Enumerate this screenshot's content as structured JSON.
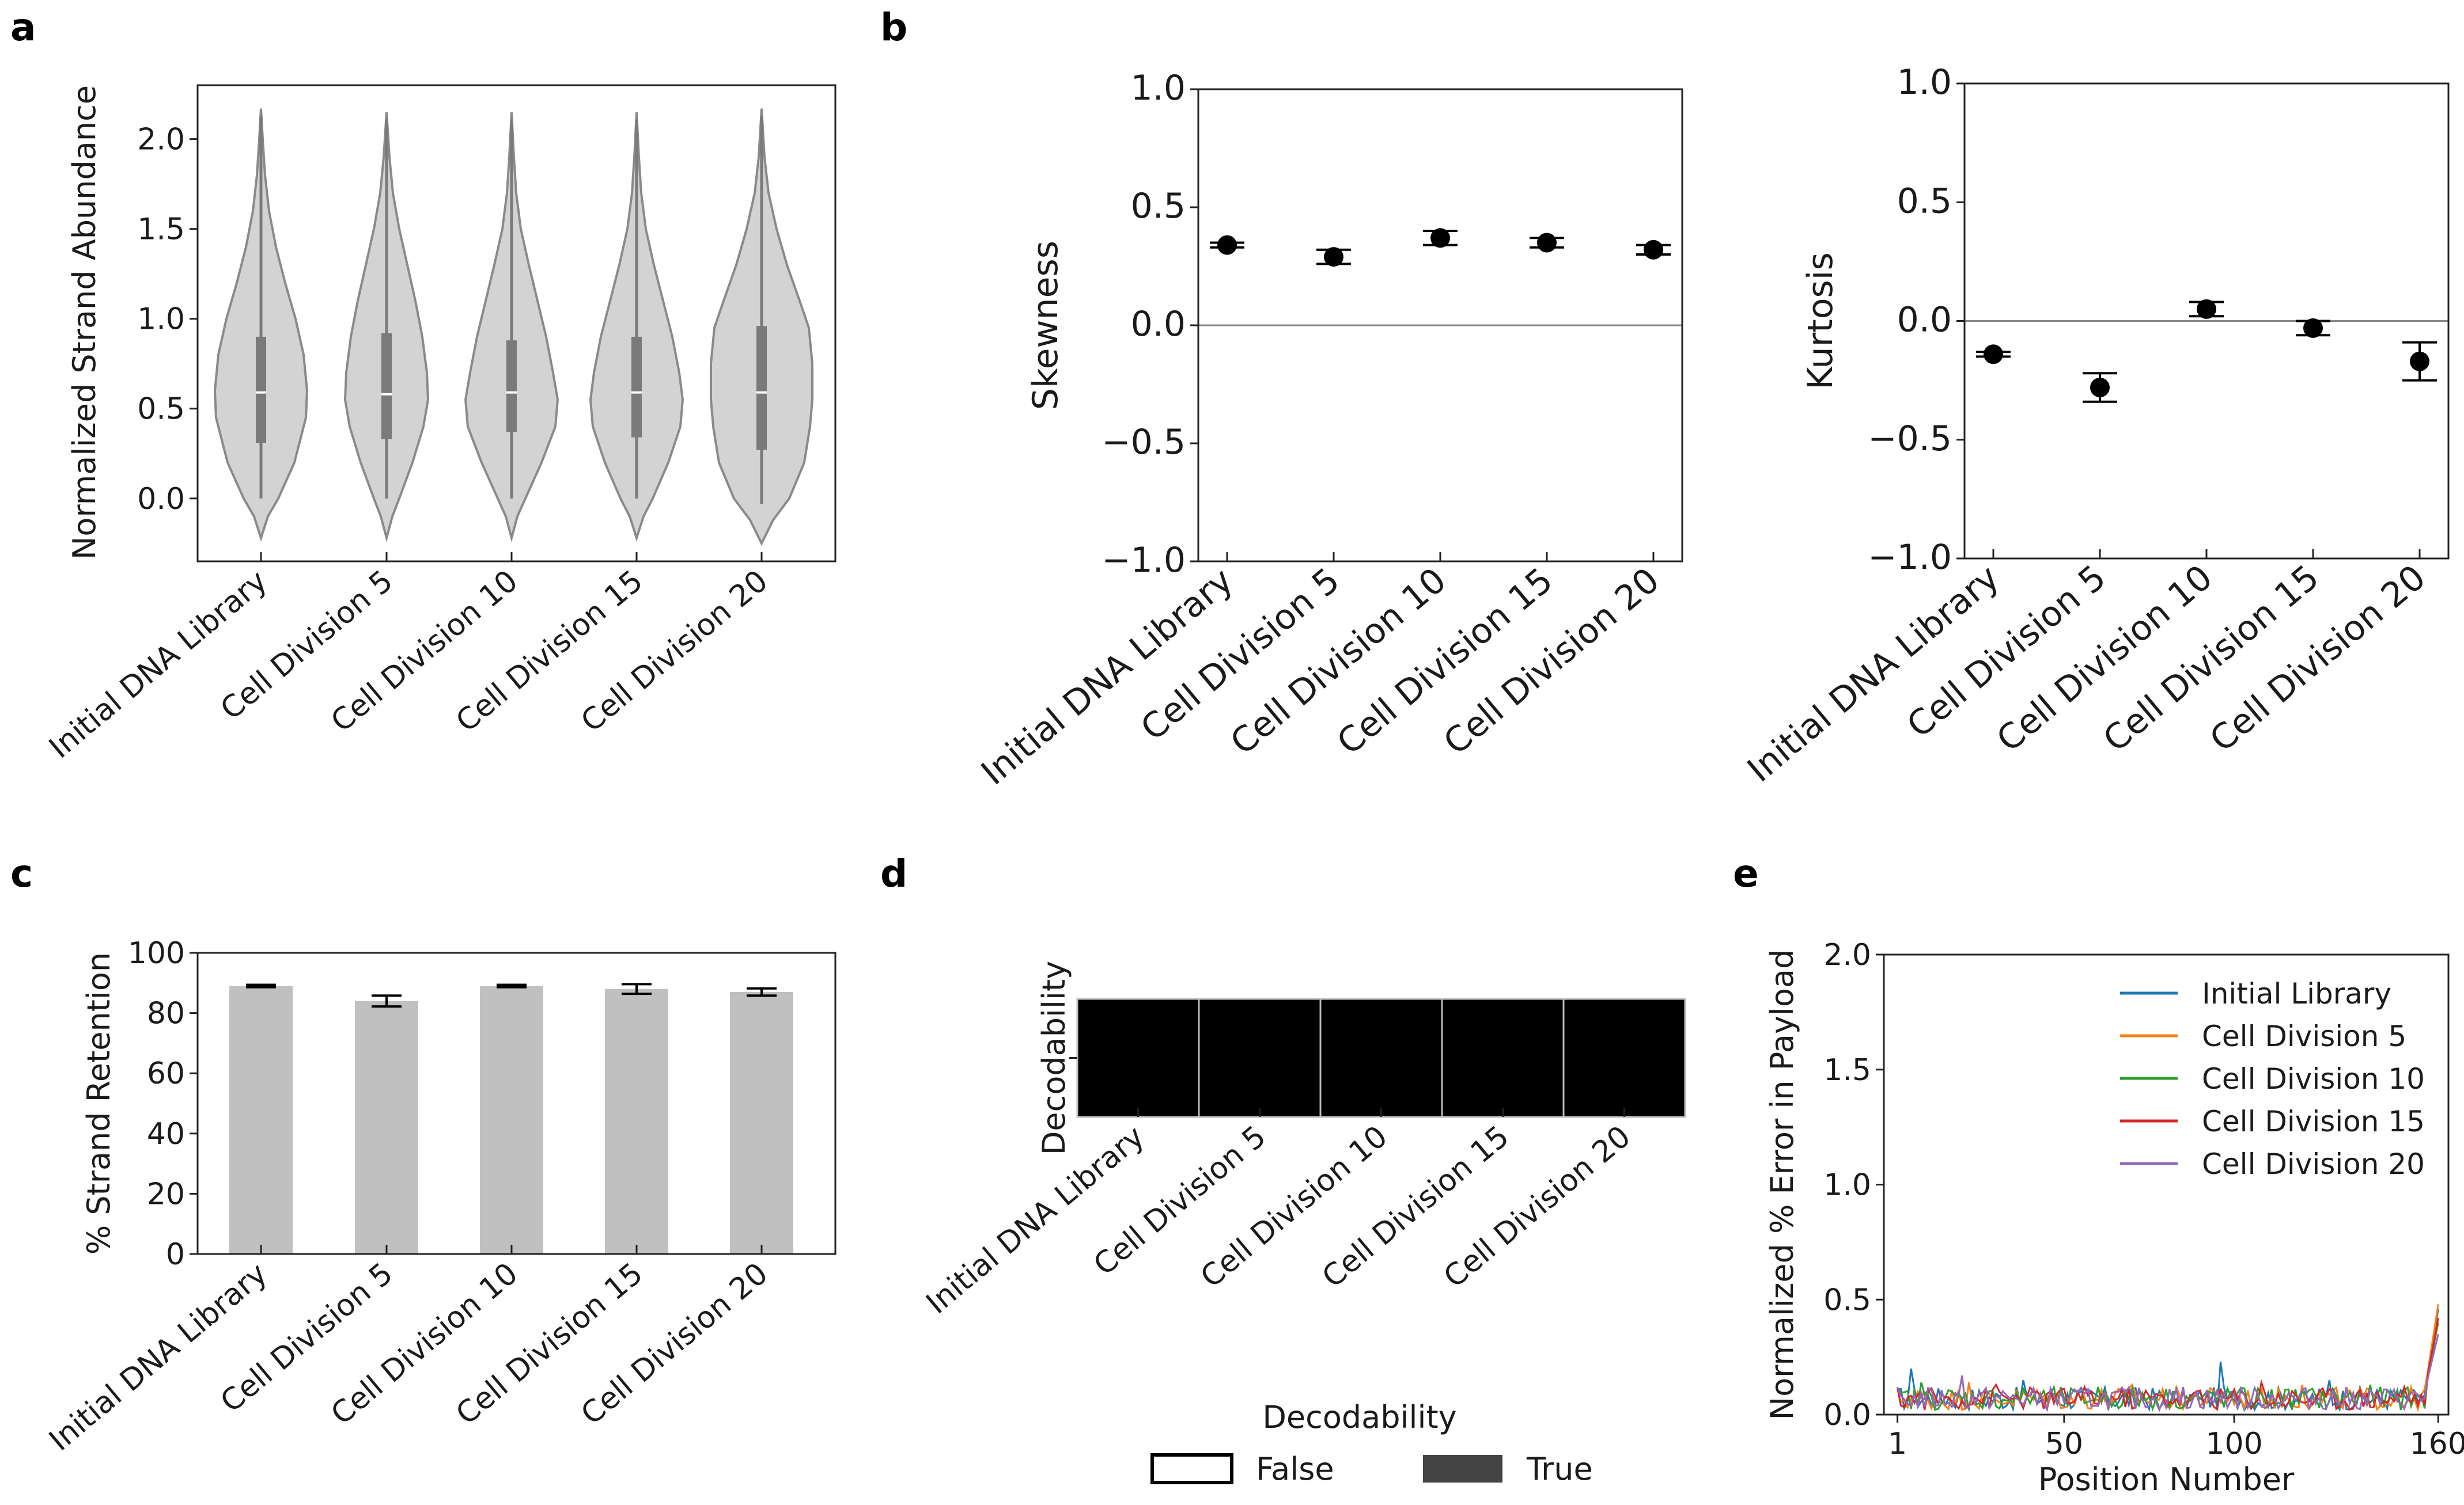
{
  "panels": {
    "a": "a",
    "b": "b",
    "c": "c",
    "d": "d",
    "e": "e"
  },
  "colors": {
    "violin_fill": "#d3d3d3",
    "violin_edge": "#8a8a8a",
    "box": "#7a7a7a",
    "bar": "#c0c0c0",
    "heat_true": "#000000",
    "legend_true": "#444444",
    "series": [
      "#1f77b4",
      "#ff7f0e",
      "#2ca02c",
      "#d62728",
      "#9467bd"
    ]
  },
  "chart_data": [
    {
      "id": "a",
      "type": "violin",
      "categories": [
        "Initial DNA Library",
        "Cell Division 5",
        "Cell Division 10",
        "Cell Division 15",
        "Cell Division 20"
      ],
      "ylabel": "Normalized Strand Abundance",
      "ylim": [
        -0.35,
        2.3
      ],
      "yticks": [
        0.0,
        0.5,
        1.0,
        1.5,
        2.0
      ],
      "ytick_labels": [
        "0.0",
        "0.5",
        "1.0",
        "1.5",
        "2.0"
      ],
      "series": [
        {
          "name": "Initial DNA Library",
          "min": -0.22,
          "max": 2.17,
          "q1": 0.31,
          "median": 0.59,
          "q3": 0.9,
          "profile": [
            [
              -0.22,
              0.0
            ],
            [
              -0.1,
              0.12
            ],
            [
              0.0,
              0.3
            ],
            [
              0.2,
              0.58
            ],
            [
              0.45,
              0.78
            ],
            [
              0.6,
              0.8
            ],
            [
              0.8,
              0.74
            ],
            [
              1.0,
              0.6
            ],
            [
              1.2,
              0.42
            ],
            [
              1.4,
              0.26
            ],
            [
              1.6,
              0.14
            ],
            [
              1.8,
              0.07
            ],
            [
              2.0,
              0.03
            ],
            [
              2.17,
              0.0
            ]
          ]
        },
        {
          "name": "Cell Division 5",
          "min": -0.22,
          "max": 2.15,
          "q1": 0.33,
          "median": 0.58,
          "q3": 0.92,
          "profile": [
            [
              -0.22,
              0.0
            ],
            [
              -0.1,
              0.1
            ],
            [
              0.0,
              0.22
            ],
            [
              0.2,
              0.45
            ],
            [
              0.4,
              0.64
            ],
            [
              0.55,
              0.72
            ],
            [
              0.7,
              0.7
            ],
            [
              0.9,
              0.62
            ],
            [
              1.1,
              0.5
            ],
            [
              1.3,
              0.36
            ],
            [
              1.5,
              0.22
            ],
            [
              1.7,
              0.11
            ],
            [
              1.9,
              0.05
            ],
            [
              2.15,
              0.0
            ]
          ]
        },
        {
          "name": "Cell Division 10",
          "min": -0.22,
          "max": 2.15,
          "q1": 0.37,
          "median": 0.59,
          "q3": 0.88,
          "profile": [
            [
              -0.22,
              0.0
            ],
            [
              -0.1,
              0.1
            ],
            [
              0.0,
              0.24
            ],
            [
              0.2,
              0.52
            ],
            [
              0.4,
              0.76
            ],
            [
              0.55,
              0.8
            ],
            [
              0.7,
              0.72
            ],
            [
              0.9,
              0.6
            ],
            [
              1.1,
              0.45
            ],
            [
              1.3,
              0.3
            ],
            [
              1.5,
              0.16
            ],
            [
              1.7,
              0.08
            ],
            [
              1.9,
              0.04
            ],
            [
              2.15,
              0.0
            ]
          ]
        },
        {
          "name": "Cell Division 15",
          "min": -0.22,
          "max": 2.15,
          "q1": 0.34,
          "median": 0.59,
          "q3": 0.9,
          "profile": [
            [
              -0.22,
              0.0
            ],
            [
              -0.1,
              0.12
            ],
            [
              0.0,
              0.28
            ],
            [
              0.2,
              0.55
            ],
            [
              0.4,
              0.76
            ],
            [
              0.55,
              0.8
            ],
            [
              0.7,
              0.74
            ],
            [
              0.9,
              0.62
            ],
            [
              1.1,
              0.46
            ],
            [
              1.3,
              0.3
            ],
            [
              1.5,
              0.16
            ],
            [
              1.7,
              0.08
            ],
            [
              1.9,
              0.04
            ],
            [
              2.15,
              0.0
            ]
          ]
        },
        {
          "name": "Cell Division 20",
          "min": -0.25,
          "max": 2.17,
          "q1": 0.27,
          "median": 0.59,
          "q3": 0.96,
          "profile": [
            [
              -0.25,
              0.0
            ],
            [
              -0.12,
              0.2
            ],
            [
              0.0,
              0.48
            ],
            [
              0.2,
              0.74
            ],
            [
              0.4,
              0.84
            ],
            [
              0.55,
              0.88
            ],
            [
              0.75,
              0.88
            ],
            [
              0.95,
              0.82
            ],
            [
              1.1,
              0.66
            ],
            [
              1.3,
              0.44
            ],
            [
              1.5,
              0.26
            ],
            [
              1.7,
              0.12
            ],
            [
              1.9,
              0.05
            ],
            [
              2.17,
              0.0
            ]
          ]
        }
      ]
    },
    {
      "id": "b-skew",
      "type": "errorbar",
      "categories": [
        "Initial DNA Library",
        "Cell Division 5",
        "Cell Division 10",
        "Cell Division 15",
        "Cell Division 20"
      ],
      "ylabel": "Skewness",
      "ylim": [
        -1.0,
        1.0
      ],
      "yticks": [
        -1.0,
        -0.5,
        0.0,
        0.5,
        1.0
      ],
      "ytick_labels": [
        "−1.0",
        "−0.5",
        "0.0",
        "0.5",
        "1.0"
      ],
      "values": [
        0.34,
        0.29,
        0.37,
        0.35,
        0.32
      ],
      "errors": [
        0.01,
        0.03,
        0.03,
        0.02,
        0.02
      ]
    },
    {
      "id": "b-kurt",
      "type": "errorbar",
      "categories": [
        "Initial DNA Library",
        "Cell Division 5",
        "Cell Division 10",
        "Cell Division 15",
        "Cell Division 20"
      ],
      "ylabel": "Kurtosis",
      "ylim": [
        -1.0,
        1.0
      ],
      "yticks": [
        -1.0,
        -0.5,
        0.0,
        0.5,
        1.0
      ],
      "ytick_labels": [
        "−1.0",
        "−0.5",
        "0.0",
        "0.5",
        "1.0"
      ],
      "values": [
        -0.14,
        -0.28,
        0.05,
        -0.03,
        -0.17
      ],
      "errors": [
        0.01,
        0.06,
        0.03,
        0.03,
        0.08
      ]
    },
    {
      "id": "c",
      "type": "bar",
      "categories": [
        "Initial DNA Library",
        "Cell Division 5",
        "Cell Division 10",
        "Cell Division 15",
        "Cell Division 20"
      ],
      "ylabel": "% Strand Retention",
      "ylim": [
        0,
        100
      ],
      "yticks": [
        0,
        20,
        40,
        60,
        80,
        100
      ],
      "ytick_labels": [
        "0",
        "20",
        "40",
        "60",
        "80",
        "100"
      ],
      "values": [
        89,
        84,
        89,
        88,
        87
      ],
      "errors": [
        0.4,
        1.8,
        0.4,
        1.6,
        1.2
      ]
    },
    {
      "id": "d",
      "type": "heatmap",
      "categories": [
        "Initial DNA Library",
        "Cell Division 5",
        "Cell Division 10",
        "Cell Division 15",
        "Cell Division 20"
      ],
      "ylabel": "Decodability",
      "values": [
        true,
        true,
        true,
        true,
        true
      ],
      "legend_title": "Decodability",
      "legend_labels": [
        "False",
        "True"
      ]
    },
    {
      "id": "e",
      "type": "line",
      "xlabel": "Position Number",
      "ylabel": "Normalized % Error in Payload",
      "xlim": [
        -3,
        163
      ],
      "ylim": [
        0.0,
        2.0
      ],
      "xticks": [
        1,
        50,
        100,
        160
      ],
      "xtick_labels": [
        "1",
        "50",
        "100",
        "160"
      ],
      "yticks": [
        0.0,
        0.5,
        1.0,
        1.5,
        2.0
      ],
      "ytick_labels": [
        "0.0",
        "0.5",
        "1.0",
        "1.5",
        "2.0"
      ],
      "series": [
        {
          "name": "Initial Library",
          "spikes": [
            [
              5,
              0.2
            ],
            [
              38,
              0.15
            ],
            [
              96,
              0.23
            ],
            [
              128,
              0.15
            ]
          ],
          "end": 0.46
        },
        {
          "name": "Cell Division 5",
          "spikes": [
            [
              22,
              0.14
            ],
            [
              70,
              0.13
            ],
            [
              120,
              0.13
            ]
          ],
          "end": 0.48
        },
        {
          "name": "Cell Division 10",
          "spikes": [
            [
              8,
              0.14
            ],
            [
              60,
              0.12
            ],
            [
              140,
              0.13
            ]
          ],
          "end": 0.4
        },
        {
          "name": "Cell Division 15",
          "spikes": [
            [
              30,
              0.13
            ],
            [
              108,
              0.14
            ],
            [
              150,
              0.12
            ]
          ],
          "end": 0.42
        },
        {
          "name": "Cell Division 20",
          "spikes": [
            [
              20,
              0.17
            ],
            [
              85,
              0.12
            ]
          ],
          "end": 0.35
        }
      ]
    }
  ]
}
